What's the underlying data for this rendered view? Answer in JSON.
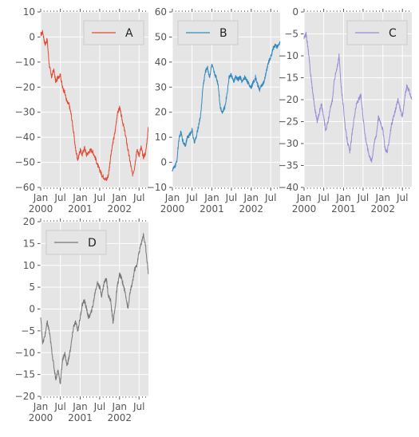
{
  "chart_data": [
    {
      "type": "line",
      "series": [
        {
          "name": "A",
          "color": "#E24A33"
        }
      ],
      "x": [
        "2000-01-01",
        "2000-01-20",
        "2000-02-10",
        "2000-03-01",
        "2000-03-20",
        "2000-04-10",
        "2000-05-01",
        "2000-05-20",
        "2000-06-10",
        "2000-07-01",
        "2000-07-20",
        "2000-08-10",
        "2000-09-01",
        "2000-09-20",
        "2000-10-10",
        "2000-11-01",
        "2000-11-20",
        "2000-12-10",
        "2001-01-01",
        "2001-01-20",
        "2001-02-10",
        "2001-03-01",
        "2001-03-20",
        "2001-04-10",
        "2001-05-01",
        "2001-05-20",
        "2001-06-10",
        "2001-07-01",
        "2001-07-20",
        "2001-08-10",
        "2001-09-01",
        "2001-09-20",
        "2001-10-10",
        "2001-11-01",
        "2001-11-20",
        "2001-12-10",
        "2002-01-01",
        "2002-01-20",
        "2002-02-10",
        "2002-03-01",
        "2002-03-20",
        "2002-04-10",
        "2002-05-01",
        "2002-05-20",
        "2002-06-10",
        "2002-07-01",
        "2002-07-20",
        "2002-08-10",
        "2002-09-01",
        "2002-09-26"
      ],
      "values": [
        1,
        2,
        -3,
        -1,
        -11,
        -16,
        -13,
        -18,
        -16,
        -15,
        -20,
        -22,
        -26,
        -27,
        -31,
        -38,
        -45,
        -49,
        -45,
        -47,
        -44,
        -47,
        -46,
        -45,
        -46,
        -48,
        -51,
        -53,
        -55,
        -56,
        -57,
        -55,
        -48,
        -42,
        -38,
        -31,
        -28,
        -32,
        -36,
        -40,
        -45,
        -50,
        -55,
        -52,
        -45,
        -47,
        -44,
        -48,
        -46,
        -36
      ],
      "ylim": [
        -60,
        10
      ],
      "yticks": [
        "−60",
        "−50",
        "−40",
        "−30",
        "−20",
        "−10",
        "0",
        "10"
      ],
      "xticks": [
        "Jan\n2000",
        "Jul",
        "Jan\n2001",
        "Jul",
        "Jan\n2002",
        "Jul"
      ],
      "legend": "top-right"
    },
    {
      "type": "line",
      "series": [
        {
          "name": "B",
          "color": "#348ABD"
        }
      ],
      "x": [
        "2000-01-01",
        "2000-01-20",
        "2000-02-10",
        "2000-03-01",
        "2000-03-20",
        "2000-04-10",
        "2000-05-01",
        "2000-05-20",
        "2000-06-10",
        "2000-07-01",
        "2000-07-20",
        "2000-08-10",
        "2000-09-01",
        "2000-09-20",
        "2000-10-10",
        "2000-11-01",
        "2000-11-20",
        "2000-12-10",
        "2001-01-01",
        "2001-01-20",
        "2001-02-10",
        "2001-03-01",
        "2001-03-20",
        "2001-04-10",
        "2001-05-01",
        "2001-05-20",
        "2001-06-10",
        "2001-07-01",
        "2001-07-20",
        "2001-08-10",
        "2001-09-01",
        "2001-09-20",
        "2001-10-10",
        "2001-11-01",
        "2001-11-20",
        "2001-12-10",
        "2002-01-01",
        "2002-01-20",
        "2002-02-10",
        "2002-03-01",
        "2002-03-20",
        "2002-04-10",
        "2002-05-01",
        "2002-05-20",
        "2002-06-10",
        "2002-07-01",
        "2002-07-20",
        "2002-08-10",
        "2002-09-01",
        "2002-09-26"
      ],
      "values": [
        -3,
        -2,
        0,
        9,
        12,
        8,
        7,
        10,
        11,
        13,
        8,
        10,
        15,
        19,
        30,
        36,
        38,
        34,
        39,
        36,
        34,
        31,
        22,
        20,
        22,
        27,
        34,
        35,
        32,
        34,
        33,
        34,
        32,
        34,
        33,
        31,
        30,
        32,
        34,
        31,
        29,
        31,
        32,
        36,
        40,
        42,
        45,
        47,
        46,
        48
      ],
      "ylim": [
        -10,
        60
      ],
      "yticks": [
        "−10",
        "0",
        "10",
        "20",
        "30",
        "40",
        "50",
        "60"
      ],
      "xticks": [
        "Jan\n2000",
        "Jul",
        "Jan\n2001",
        "Jul",
        "Jan\n2002",
        "Jul"
      ],
      "legend": "top-left"
    },
    {
      "type": "line",
      "series": [
        {
          "name": "C",
          "color": "#988ED5"
        }
      ],
      "x": [
        "2000-01-01",
        "2000-01-20",
        "2000-02-10",
        "2000-03-01",
        "2000-03-20",
        "2000-04-10",
        "2000-05-01",
        "2000-05-20",
        "2000-06-10",
        "2000-07-01",
        "2000-07-20",
        "2000-08-10",
        "2000-09-01",
        "2000-09-20",
        "2000-10-10",
        "2000-11-01",
        "2000-11-20",
        "2000-12-10",
        "2001-01-01",
        "2001-01-20",
        "2001-02-10",
        "2001-03-01",
        "2001-03-20",
        "2001-04-10",
        "2001-05-01",
        "2001-05-20",
        "2001-06-10",
        "2001-07-01",
        "2001-07-20",
        "2001-08-10",
        "2001-09-01",
        "2001-09-20",
        "2001-10-10",
        "2001-11-01",
        "2001-11-20",
        "2001-12-10",
        "2002-01-01",
        "2002-01-20",
        "2002-02-10",
        "2002-03-01",
        "2002-03-20",
        "2002-04-10",
        "2002-05-01",
        "2002-05-20",
        "2002-06-10",
        "2002-07-01",
        "2002-07-20",
        "2002-08-10",
        "2002-09-01",
        "2002-09-26"
      ],
      "values": [
        -6,
        -5,
        -9,
        -14,
        -18,
        -22,
        -25,
        -23,
        -21,
        -24,
        -27,
        -25,
        -22,
        -20,
        -15,
        -13,
        -10,
        -17,
        -22,
        -27,
        -30,
        -32,
        -28,
        -24,
        -21,
        -20,
        -19,
        -24,
        -28,
        -31,
        -33,
        -34,
        -30,
        -28,
        -24,
        -25,
        -27,
        -31,
        -32,
        -29,
        -26,
        -24,
        -22,
        -20,
        -22,
        -24,
        -20,
        -17,
        -18,
        -20
      ],
      "ylim": [
        -40,
        0
      ],
      "yticks": [
        "−40",
        "−35",
        "−30",
        "−25",
        "−20",
        "−15",
        "−10",
        "−5",
        "0"
      ],
      "xticks": [
        "Jan\n2000",
        "Jul",
        "Jan\n2001",
        "Jul",
        "Jan\n2002",
        "Jul"
      ],
      "legend": "top-right"
    },
    {
      "type": "line",
      "series": [
        {
          "name": "D",
          "color": "#777777"
        }
      ],
      "x": [
        "2000-01-01",
        "2000-01-20",
        "2000-02-10",
        "2000-03-01",
        "2000-03-20",
        "2000-04-10",
        "2000-05-01",
        "2000-05-20",
        "2000-06-10",
        "2000-07-01",
        "2000-07-20",
        "2000-08-10",
        "2000-09-01",
        "2000-09-20",
        "2000-10-10",
        "2000-11-01",
        "2000-11-20",
        "2000-12-10",
        "2001-01-01",
        "2001-01-20",
        "2001-02-10",
        "2001-03-01",
        "2001-03-20",
        "2001-04-10",
        "2001-05-01",
        "2001-05-20",
        "2001-06-10",
        "2001-07-01",
        "2001-07-20",
        "2001-08-10",
        "2001-09-01",
        "2001-09-20",
        "2001-10-10",
        "2001-11-01",
        "2001-11-20",
        "2001-12-10",
        "2002-01-01",
        "2002-01-20",
        "2002-02-10",
        "2002-03-01",
        "2002-03-20",
        "2002-04-10",
        "2002-05-01",
        "2002-05-20",
        "2002-06-10",
        "2002-07-01",
        "2002-07-20",
        "2002-08-10",
        "2002-09-01",
        "2002-09-26"
      ],
      "values": [
        -2,
        -8,
        -6,
        -3,
        -5,
        -9,
        -13,
        -16,
        -14,
        -17,
        -12,
        -10,
        -13,
        -11,
        -8,
        -4,
        -3,
        -5,
        -2,
        1,
        2,
        0,
        -2,
        -1,
        1,
        4,
        6,
        5,
        3,
        6,
        7,
        3,
        2,
        -3,
        0,
        5,
        8,
        7,
        5,
        3,
        0,
        4,
        6,
        9,
        10,
        13,
        15,
        17,
        14,
        8
      ],
      "ylim": [
        -20,
        20
      ],
      "yticks": [
        "−20",
        "−15",
        "−10",
        "−5",
        "0",
        "5",
        "10",
        "15",
        "20"
      ],
      "xticks": [
        "Jan\n2000",
        "Jul",
        "Jan\n2001",
        "Jul",
        "Jan\n2002",
        "Jul"
      ],
      "legend": "top-left"
    }
  ]
}
